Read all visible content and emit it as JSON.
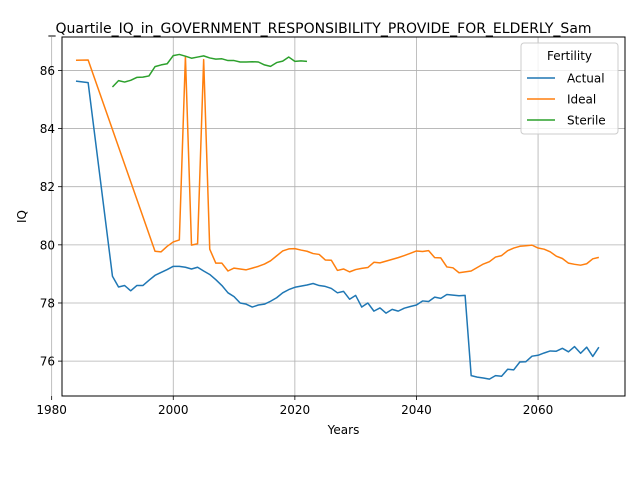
{
  "chart_data": {
    "type": "line",
    "title": "_Quartile_IQ_in_GOVERNMENT_RESPONSIBILITY_PROVIDE_FOR_ELDERLY_Sam",
    "xlabel": "Years",
    "ylabel": "IQ",
    "xlim": [
      1981.7,
      2074.3
    ],
    "ylim": [
      74.8,
      87.15
    ],
    "x_ticks": [
      1980,
      2000,
      2020,
      2040,
      2060
    ],
    "y_ticks": [
      76,
      78,
      80,
      82,
      84,
      86
    ],
    "grid": true,
    "legend": {
      "title": "Fertility",
      "placement": "upper right"
    },
    "series": [
      {
        "name": "Actual",
        "color": "#1f77b4",
        "x": [
          1984,
          1986,
          1990,
          1991,
          1992,
          1993,
          1994,
          1995,
          1996,
          1997,
          1998,
          1999,
          2000,
          2001,
          2002,
          2003,
          2004,
          2005,
          2006,
          2007,
          2008,
          2009,
          2010,
          2011,
          2012,
          2013,
          2014,
          2015,
          2016,
          2017,
          2018,
          2019,
          2020,
          2021,
          2022,
          2023,
          2024,
          2025,
          2026,
          2027,
          2028,
          2029,
          2030,
          2031,
          2032,
          2033,
          2034,
          2035,
          2036,
          2037,
          2038,
          2039,
          2040,
          2041,
          2042,
          2043,
          2044,
          2045,
          2046,
          2047,
          2048,
          2049,
          2050,
          2051,
          2052,
          2053,
          2054,
          2055,
          2056,
          2057,
          2058,
          2059,
          2060,
          2061,
          2062,
          2063,
          2064,
          2065,
          2066,
          2067,
          2068,
          2069,
          2070
        ],
        "y": [
          85.63,
          85.58,
          78.92,
          78.55,
          78.6,
          78.42,
          78.6,
          78.6,
          78.78,
          78.95,
          79.05,
          79.15,
          79.26,
          79.26,
          79.23,
          79.17,
          79.23,
          79.1,
          78.98,
          78.8,
          78.6,
          78.35,
          78.22,
          78.0,
          77.96,
          77.86,
          77.93,
          77.96,
          78.06,
          78.18,
          78.35,
          78.46,
          78.54,
          78.58,
          78.62,
          78.67,
          78.6,
          78.57,
          78.5,
          78.35,
          78.4,
          78.13,
          78.26,
          77.86,
          78.0,
          77.72,
          77.83,
          77.65,
          77.78,
          77.72,
          77.82,
          77.88,
          77.93,
          78.07,
          78.05,
          78.2,
          78.16,
          78.29,
          78.27,
          78.25,
          78.26,
          75.5,
          75.45,
          75.42,
          75.38,
          75.5,
          75.48,
          75.72,
          75.7,
          75.97,
          75.98,
          76.17,
          76.2,
          76.28,
          76.35,
          76.34,
          76.44,
          76.32,
          76.5,
          76.27,
          76.48,
          76.16,
          76.48
        ]
      },
      {
        "name": "Ideal",
        "color": "#ff7f0e",
        "x": [
          1984,
          1986,
          1997,
          1998,
          1999,
          2000,
          2001,
          2002,
          2003,
          2004,
          2005,
          2006,
          2007,
          2008,
          2009,
          2010,
          2011,
          2012,
          2013,
          2014,
          2015,
          2016,
          2017,
          2018,
          2019,
          2020,
          2021,
          2022,
          2023,
          2024,
          2025,
          2026,
          2027,
          2028,
          2029,
          2030,
          2031,
          2032,
          2033,
          2034,
          2035,
          2036,
          2037,
          2038,
          2039,
          2040,
          2041,
          2042,
          2043,
          2044,
          2045,
          2046,
          2047,
          2048,
          2049,
          2050,
          2051,
          2052,
          2053,
          2054,
          2055,
          2056,
          2057,
          2058,
          2059,
          2060,
          2061,
          2062,
          2063,
          2064,
          2065,
          2066,
          2067,
          2068,
          2069,
          2070
        ],
        "y": [
          86.35,
          86.36,
          79.78,
          79.76,
          79.95,
          80.1,
          80.17,
          86.48,
          79.99,
          80.04,
          86.37,
          79.85,
          79.37,
          79.37,
          79.1,
          79.2,
          79.17,
          79.14,
          79.2,
          79.26,
          79.34,
          79.45,
          79.62,
          79.79,
          79.86,
          79.87,
          79.82,
          79.78,
          79.7,
          79.67,
          79.48,
          79.47,
          79.12,
          79.17,
          79.07,
          79.15,
          79.19,
          79.22,
          79.4,
          79.38,
          79.44,
          79.5,
          79.56,
          79.63,
          79.71,
          79.79,
          79.77,
          79.8,
          79.56,
          79.55,
          79.24,
          79.21,
          79.04,
          79.07,
          79.1,
          79.22,
          79.34,
          79.42,
          79.58,
          79.63,
          79.8,
          79.89,
          79.95,
          79.97,
          79.99,
          79.89,
          79.85,
          79.76,
          79.61,
          79.53,
          79.37,
          79.33,
          79.3,
          79.35,
          79.52,
          79.57
        ]
      },
      {
        "name": "Sterile",
        "color": "#2ca02c",
        "x": [
          1990,
          1991,
          1992,
          1993,
          1994,
          1995,
          1996,
          1997,
          1998,
          1999,
          2000,
          2001,
          2002,
          2003,
          2004,
          2005,
          2006,
          2007,
          2008,
          2009,
          2010,
          2011,
          2012,
          2013,
          2014,
          2015,
          2016,
          2017,
          2018,
          2019,
          2020,
          2021,
          2022
        ],
        "y": [
          85.43,
          85.65,
          85.6,
          85.66,
          85.76,
          85.77,
          85.81,
          86.13,
          86.19,
          86.23,
          86.51,
          86.55,
          86.49,
          86.42,
          86.46,
          86.5,
          86.43,
          86.39,
          86.4,
          86.34,
          86.34,
          86.29,
          86.29,
          86.3,
          86.29,
          86.19,
          86.14,
          86.27,
          86.32,
          86.46,
          86.31,
          86.33,
          86.31
        ]
      }
    ]
  }
}
